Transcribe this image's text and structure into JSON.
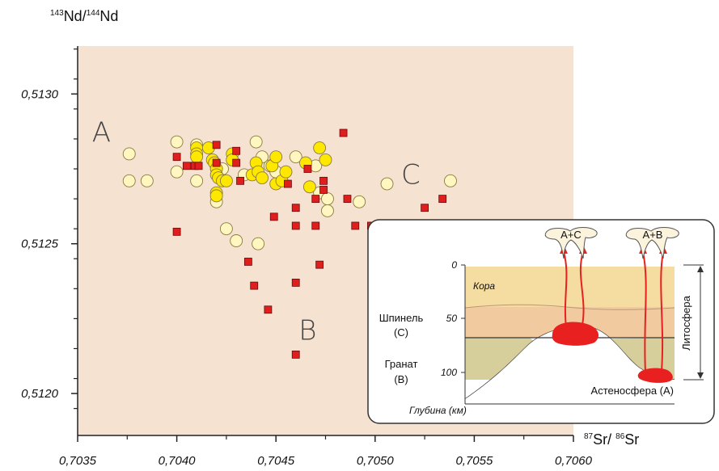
{
  "chart_data": {
    "type": "scatter",
    "y_label": {
      "sup1": "143",
      "t1": "Nd/",
      "sup2": "144",
      "t2": "Nd"
    },
    "x_label": {
      "sup1": "87",
      "t1": "Sr/ ",
      "sup2": "86",
      "t2": "Sr"
    },
    "xlim": [
      0.7035,
      0.706
    ],
    "ylim": [
      0.51186,
      0.51316
    ],
    "x_ticks": [
      "0,7035",
      "0,7040",
      "0,7045",
      "0,7050",
      "0,7055",
      "0,7060"
    ],
    "x_tick_values": [
      0.7035,
      0.704,
      0.7045,
      0.705,
      0.7055,
      0.706
    ],
    "y_ticks": [
      "0,5120",
      "0,5125",
      "0,5130"
    ],
    "y_tick_values": [
      0.512,
      0.5125,
      0.513
    ],
    "region_labels": [
      {
        "text": "A",
        "x": 0.70362,
        "y": 0.51284
      },
      {
        "text": "B",
        "x": 0.70466,
        "y": 0.51218
      },
      {
        "text": "C",
        "x": 0.70518,
        "y": 0.5127
      }
    ],
    "series": [
      {
        "marker": "circle-yellow",
        "color": "#ffe800",
        "points": [
          [
            0.7041,
            0.51282
          ],
          [
            0.7041,
            0.5128
          ],
          [
            0.7041,
            0.51279
          ],
          [
            0.70416,
            0.51282
          ],
          [
            0.70418,
            0.51278
          ],
          [
            0.70419,
            0.51277
          ],
          [
            0.7042,
            0.51275
          ],
          [
            0.7042,
            0.51273
          ],
          [
            0.70421,
            0.51272
          ],
          [
            0.7042,
            0.51267
          ],
          [
            0.7042,
            0.51266
          ],
          [
            0.70423,
            0.51271
          ],
          [
            0.70425,
            0.51271
          ],
          [
            0.70428,
            0.5128
          ],
          [
            0.70428,
            0.51278
          ],
          [
            0.70438,
            0.51273
          ],
          [
            0.7044,
            0.51277
          ],
          [
            0.70441,
            0.51274
          ],
          [
            0.70443,
            0.51272
          ],
          [
            0.70448,
            0.51276
          ],
          [
            0.7045,
            0.51279
          ],
          [
            0.7045,
            0.5127
          ],
          [
            0.70453,
            0.51271
          ],
          [
            0.70455,
            0.51274
          ],
          [
            0.70465,
            0.51277
          ],
          [
            0.70467,
            0.51269
          ],
          [
            0.70472,
            0.51282
          ],
          [
            0.70475,
            0.51278
          ]
        ]
      },
      {
        "marker": "circle-cream",
        "color": "#fff6c0",
        "points": [
          [
            0.70376,
            0.5128
          ],
          [
            0.70376,
            0.51271
          ],
          [
            0.70385,
            0.51271
          ],
          [
            0.704,
            0.51284
          ],
          [
            0.704,
            0.51274
          ],
          [
            0.7041,
            0.51283
          ],
          [
            0.7041,
            0.51271
          ],
          [
            0.7042,
            0.51264
          ],
          [
            0.70423,
            0.51275
          ],
          [
            0.70425,
            0.51255
          ],
          [
            0.7043,
            0.51251
          ],
          [
            0.70434,
            0.51273
          ],
          [
            0.7044,
            0.51284
          ],
          [
            0.70441,
            0.5125
          ],
          [
            0.70443,
            0.51279
          ],
          [
            0.70447,
            0.51276
          ],
          [
            0.7045,
            0.51274
          ],
          [
            0.7046,
            0.51279
          ],
          [
            0.7047,
            0.51276
          ],
          [
            0.70472,
            0.51267
          ],
          [
            0.70476,
            0.51265
          ],
          [
            0.70476,
            0.51261
          ],
          [
            0.70492,
            0.51264
          ],
          [
            0.70506,
            0.5127
          ],
          [
            0.70538,
            0.51271
          ]
        ]
      },
      {
        "marker": "square-red",
        "color": "#e01e1e",
        "points": [
          [
            0.704,
            0.51254
          ],
          [
            0.704,
            0.51279
          ],
          [
            0.70405,
            0.51276
          ],
          [
            0.70409,
            0.51276
          ],
          [
            0.70411,
            0.51276
          ],
          [
            0.7042,
            0.51283
          ],
          [
            0.7042,
            0.51277
          ],
          [
            0.7043,
            0.51281
          ],
          [
            0.7043,
            0.51277
          ],
          [
            0.70432,
            0.51271
          ],
          [
            0.70436,
            0.51244
          ],
          [
            0.70439,
            0.51236
          ],
          [
            0.70446,
            0.51228
          ],
          [
            0.70449,
            0.51259
          ],
          [
            0.70456,
            0.5127
          ],
          [
            0.7046,
            0.51262
          ],
          [
            0.7046,
            0.51256
          ],
          [
            0.7046,
            0.51237
          ],
          [
            0.7046,
            0.51213
          ],
          [
            0.70466,
            0.51275
          ],
          [
            0.7047,
            0.51265
          ],
          [
            0.7047,
            0.51256
          ],
          [
            0.70472,
            0.51243
          ],
          [
            0.70474,
            0.51271
          ],
          [
            0.70474,
            0.51268
          ],
          [
            0.70484,
            0.51287
          ],
          [
            0.70486,
            0.51265
          ],
          [
            0.7049,
            0.51256
          ],
          [
            0.70498,
            0.51256
          ],
          [
            0.70501,
            0.51256
          ],
          [
            0.70525,
            0.51262
          ],
          [
            0.70534,
            0.51265
          ]
        ]
      }
    ],
    "colors": {
      "plot_bg": "#f6e2d1",
      "inset_border": "#333333"
    },
    "inset": {
      "labels": {
        "ac": "A+C",
        "ab": "A+B",
        "kora": "Кора",
        "shpinel": "Шпинель",
        "shpinel_c": "(С)",
        "granat": "Гранат",
        "granat_b": "(В)",
        "astenosfera": "Астеносфера (А)",
        "glubina": "Глубина (км)",
        "litosfera": "Литосфера"
      },
      "depth_ticks": [
        "0",
        "50",
        "100"
      ]
    }
  }
}
